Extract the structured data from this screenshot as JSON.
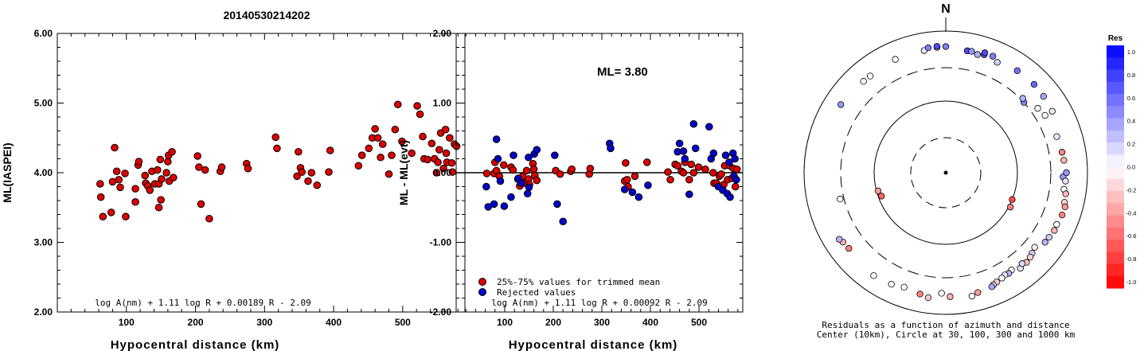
{
  "title": "20140530214202",
  "chart_data": [
    {
      "type": "scatter",
      "panel": "left",
      "xlabel": "Hypocentral distance (km)",
      "ylabel": "ML(IASPEI)",
      "xlim": [
        0,
        590
      ],
      "ylim": [
        2.0,
        6.0
      ],
      "xticks": [
        "100",
        "200",
        "300",
        "400",
        "500"
      ],
      "yticks": [
        "2.00",
        "3.00",
        "4.00",
        "5.00",
        "6.00"
      ],
      "formula": "log A(nm) + 1.11 log R + 0.00189 R - 2.09",
      "series": [
        {
          "color": "#dd0000",
          "points": [
            [
              62,
              3.84
            ],
            [
              63,
              3.65
            ],
            [
              66,
              3.37
            ],
            [
              78,
              3.43
            ],
            [
              80,
              3.87
            ],
            [
              83,
              4.36
            ],
            [
              86,
              4.02
            ],
            [
              89,
              3.9
            ],
            [
              91,
              3.79
            ],
            [
              98,
              3.99
            ],
            [
              99,
              3.37
            ],
            [
              113,
              3.77
            ],
            [
              113,
              3.58
            ],
            [
              117,
              4.11
            ],
            [
              118,
              4.16
            ],
            [
              127,
              3.96
            ],
            [
              128,
              3.85
            ],
            [
              131,
              3.81
            ],
            [
              134,
              3.75
            ],
            [
              137,
              4.02
            ],
            [
              141,
              3.84
            ],
            [
              145,
              4.04
            ],
            [
              147,
              3.5
            ],
            [
              147,
              3.84
            ],
            [
              149,
              4.19
            ],
            [
              150,
              3.61
            ],
            [
              151,
              3.91
            ],
            [
              158,
              4.0
            ],
            [
              160,
              4.16
            ],
            [
              161,
              4.25
            ],
            [
              162,
              3.88
            ],
            [
              166,
              4.3
            ],
            [
              168,
              3.93
            ],
            [
              203,
              4.24
            ],
            [
              205,
              4.08
            ],
            [
              208,
              3.55
            ],
            [
              214,
              4.04
            ],
            [
              220,
              3.34
            ],
            [
              236,
              4.02
            ],
            [
              238,
              4.08
            ],
            [
              274,
              4.13
            ],
            [
              276,
              4.06
            ],
            [
              316,
              4.51
            ],
            [
              318,
              4.35
            ],
            [
              347,
              3.95
            ],
            [
              349,
              4.3
            ],
            [
              352,
              4.07
            ],
            [
              354,
              4.01
            ],
            [
              363,
              3.88
            ],
            [
              368,
              4.0
            ],
            [
              376,
              3.82
            ],
            [
              393,
              4.01
            ],
            [
              395,
              4.32
            ],
            [
              436,
              4.1
            ],
            [
              441,
              4.25
            ],
            [
              451,
              4.35
            ],
            [
              456,
              4.5
            ],
            [
              460,
              4.63
            ],
            [
              464,
              4.5
            ],
            [
              468,
              4.22
            ],
            [
              471,
              4.41
            ],
            [
              480,
              3.98
            ],
            [
              484,
              4.25
            ],
            [
              489,
              4.62
            ],
            [
              493,
              4.98
            ],
            [
              499,
              4.45
            ],
            [
              513,
              4.28
            ],
            [
              521,
              4.96
            ],
            [
              525,
              4.84
            ],
            [
              529,
              4.52
            ],
            [
              531,
              4.2
            ],
            [
              536,
              4.19
            ],
            [
              542,
              4.42
            ],
            [
              546,
              4.2
            ],
            [
              549,
              4.0
            ],
            [
              551,
              4.15
            ],
            [
              553,
              4.33
            ],
            [
              555,
              4.57
            ],
            [
              559,
              4.06
            ],
            [
              562,
              4.62
            ],
            [
              563,
              4.28
            ],
            [
              564,
              4.15
            ],
            [
              568,
              4.5
            ],
            [
              571,
              4.14
            ],
            [
              572,
              4.01
            ],
            [
              575,
              4.41
            ],
            [
              578,
              4.38
            ]
          ]
        }
      ]
    },
    {
      "type": "scatter",
      "panel": "middle",
      "xlabel": "Hypocentral distance (km)",
      "ylabel": "ML - ML(evt)",
      "xlim": [
        0,
        590
      ],
      "ylim": [
        -2.0,
        2.0
      ],
      "xticks": [
        "100",
        "200",
        "300",
        "400",
        "500"
      ],
      "yticks": [
        "-2.00",
        "-1.00",
        "0.00",
        "1.00",
        "2.00"
      ],
      "annotation": "ML= 3.80",
      "formula": "log A(nm) + 1.11 log R + 0.00092 R - 2.09",
      "series": [
        {
          "name": "25%-75% values for trimmed mean",
          "color": "#dd0000",
          "points": [
            [
              63,
              -0.01
            ],
            [
              78,
              -0.01
            ],
            [
              80,
              0.15
            ],
            [
              83,
              0.03
            ],
            [
              89,
              -0.05
            ],
            [
              98,
              0.11
            ],
            [
              113,
              0.08
            ],
            [
              117,
              0.04
            ],
            [
              127,
              -0.09
            ],
            [
              131,
              -0.19
            ],
            [
              137,
              -0.05
            ],
            [
              141,
              -0.15
            ],
            [
              145,
              0.03
            ],
            [
              149,
              -0.09
            ],
            [
              151,
              -0.17
            ],
            [
              158,
              0.13
            ],
            [
              160,
              0.05
            ],
            [
              162,
              -0.04
            ],
            [
              166,
              -0.11
            ],
            [
              205,
              0.03
            ],
            [
              214,
              -0.02
            ],
            [
              236,
              0.02
            ],
            [
              238,
              0.05
            ],
            [
              274,
              -0.02
            ],
            [
              276,
              0.06
            ],
            [
              347,
              -0.12
            ],
            [
              349,
              0.14
            ],
            [
              352,
              -0.1
            ],
            [
              354,
              -0.2
            ],
            [
              368,
              -0.05
            ],
            [
              393,
              0.15
            ],
            [
              436,
              0.01
            ],
            [
              441,
              -0.1
            ],
            [
              451,
              0.12
            ],
            [
              456,
              0.1
            ],
            [
              464,
              0.02
            ],
            [
              468,
              0.0
            ],
            [
              471,
              0.15
            ],
            [
              480,
              -0.1
            ],
            [
              484,
              0.12
            ],
            [
              489,
              0.0
            ],
            [
              499,
              0.08
            ],
            [
              513,
              0.05
            ],
            [
              529,
              0.0
            ],
            [
              531,
              -0.15
            ],
            [
              536,
              -0.15
            ],
            [
              542,
              -0.05
            ],
            [
              546,
              -0.02
            ],
            [
              551,
              -0.17
            ],
            [
              553,
              0.1
            ],
            [
              559,
              -0.1
            ],
            [
              563,
              0.1
            ],
            [
              568,
              -0.08
            ],
            [
              571,
              0.06
            ],
            [
              575,
              -0.2
            ],
            [
              578,
              0.05
            ]
          ]
        },
        {
          "name": "Rejected values",
          "color": "#0000cc",
          "points": [
            [
              62,
              -0.2
            ],
            [
              66,
              -0.49
            ],
            [
              78,
              -0.45
            ],
            [
              83,
              0.48
            ],
            [
              86,
              0.2
            ],
            [
              91,
              -0.12
            ],
            [
              99,
              -0.48
            ],
            [
              113,
              -0.35
            ],
            [
              118,
              0.25
            ],
            [
              128,
              -0.08
            ],
            [
              134,
              -0.15
            ],
            [
              147,
              -0.3
            ],
            [
              149,
              0.22
            ],
            [
              150,
              -0.21
            ],
            [
              161,
              0.27
            ],
            [
              166,
              0.33
            ],
            [
              203,
              0.25
            ],
            [
              208,
              -0.45
            ],
            [
              220,
              -0.7
            ],
            [
              316,
              0.42
            ],
            [
              318,
              0.35
            ],
            [
              347,
              -0.24
            ],
            [
              363,
              -0.28
            ],
            [
              376,
              -0.35
            ],
            [
              395,
              -0.18
            ],
            [
              456,
              0.3
            ],
            [
              460,
              0.42
            ],
            [
              468,
              0.31
            ],
            [
              471,
              0.2
            ],
            [
              480,
              -0.31
            ],
            [
              489,
              0.7
            ],
            [
              493,
              0.35
            ],
            [
              521,
              0.66
            ],
            [
              525,
              0.2
            ],
            [
              530,
              0.28
            ],
            [
              540,
              -0.2
            ],
            [
              549,
              -0.25
            ],
            [
              555,
              0.25
            ],
            [
              558,
              -0.3
            ],
            [
              562,
              0.15
            ],
            [
              564,
              -0.35
            ],
            [
              570,
              0.28
            ],
            [
              572,
              -0.05
            ],
            [
              574,
              0.2
            ],
            [
              577,
              -0.1
            ]
          ]
        }
      ]
    },
    {
      "type": "scatter",
      "panel": "polar",
      "north_label": "N",
      "caption_line1": "Residuals as a function of azimuth and distance",
      "caption_line2": "Center (10km), Circle at 30, 100, 300 and 1000 km",
      "colorbar_title": "Res",
      "colorbar_ticks": [
        "1.0",
        "0.8",
        "0.6",
        "0.4",
        "0.2",
        "0.0",
        "-0.2",
        "-0.4",
        "-0.6",
        "-0.8",
        "-1.0"
      ],
      "rings_km": [
        10,
        30,
        100,
        300,
        1000
      ],
      "points_az_dist_res": [
        [
          10,
          555,
          0.7
        ],
        [
          18,
          560,
          0.65
        ],
        [
          35,
          570,
          0.55
        ],
        [
          45,
          575,
          0.6
        ],
        [
          52,
          560,
          0.35
        ],
        [
          60,
          540,
          0.1
        ],
        [
          48,
          300,
          0.5
        ],
        [
          46,
          320,
          0.3
        ],
        [
          55,
          380,
          0.0
        ],
        [
          60,
          410,
          0.0
        ],
        [
          72,
          440,
          0.1
        ],
        [
          80,
          460,
          -0.5
        ],
        [
          84,
          470,
          -0.3
        ],
        [
          92,
          450,
          0.4
        ],
        [
          90,
          500,
          0.4
        ],
        [
          94,
          490,
          0.1
        ],
        [
          98,
          480,
          0.0
        ],
        [
          100,
          520,
          -0.3
        ],
        [
          104,
          530,
          -0.2
        ],
        [
          106,
          560,
          -0.4
        ],
        [
          110,
          555,
          -0.5
        ],
        [
          115,
          530,
          0.0
        ],
        [
          118,
          540,
          -0.3
        ],
        [
          122,
          520,
          0.2
        ],
        [
          125,
          510,
          0.3
        ],
        [
          130,
          430,
          -0.1
        ],
        [
          133,
          460,
          0.2
        ],
        [
          135,
          480,
          -0.2
        ],
        [
          138,
          500,
          -0.25
        ],
        [
          142,
          510,
          0.1
        ],
        [
          140,
          470,
          0.15
        ],
        [
          146,
          450,
          0.0
        ],
        [
          148,
          470,
          0.3
        ],
        [
          150,
          460,
          0.1
        ],
        [
          152,
          480,
          0.0
        ],
        [
          155,
          500,
          -0.2
        ],
        [
          157,
          520,
          0.1
        ],
        [
          158,
          540,
          0.35
        ],
        [
          165,
          560,
          -0.4
        ],
        [
          168,
          600,
          0.0
        ],
        [
          178,
          560,
          -0.3
        ],
        [
          182,
          500,
          0.0
        ],
        [
          188,
          600,
          -0.2
        ],
        [
          192,
          560,
          -0.5
        ],
        [
          200,
          520,
          0.0
        ],
        [
          206,
          560,
          0.0
        ],
        [
          215,
          590,
          0.0
        ],
        [
          232,
          540,
          -0.5
        ],
        [
          236,
          560,
          -0.3
        ],
        [
          238,
          590,
          0.3
        ],
        [
          250,
          90,
          -0.6
        ],
        [
          255,
          95,
          -0.4
        ],
        [
          256,
          340,
          0.0
        ],
        [
          112,
          100,
          -0.7
        ],
        [
          118,
          105,
          -0.5
        ],
        [
          303,
          580,
          0.4
        ],
        [
          318,
          540,
          0.0
        ],
        [
          322,
          535,
          0.0
        ],
        [
          336,
          560,
          0.0
        ],
        [
          350,
          560,
          0.1
        ],
        [
          352,
          600,
          0.5
        ],
        [
          356,
          590,
          0.2
        ],
        [
          360,
          600,
          0.5
        ],
        [
          356,
          610,
          0.7
        ],
        [
          18,
          600,
          0.7
        ],
        [
          22,
          590,
          0.5
        ],
        [
          12,
          560,
          0.4
        ],
        [
          15,
          530,
          0.3
        ],
        [
          25,
          520,
          0.2
        ]
      ]
    }
  ]
}
